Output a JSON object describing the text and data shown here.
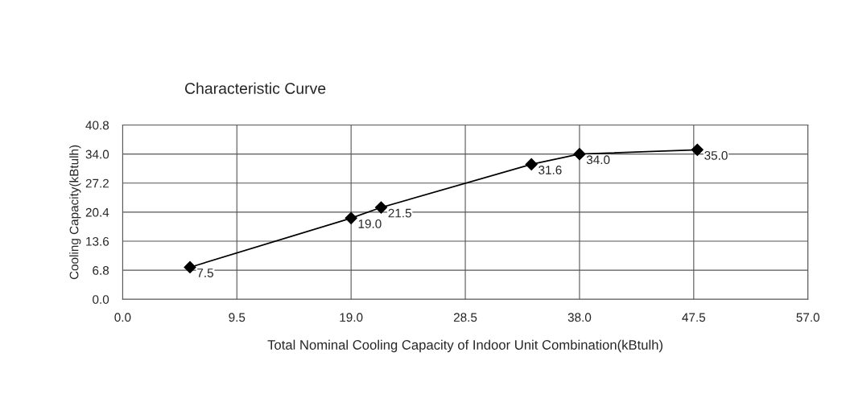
{
  "chart_data": {
    "type": "line",
    "title": "Characteristic Curve",
    "xlabel": "Total Nominal Cooling Capacity of Indoor Unit Combination(kBtulh)",
    "ylabel": "Cooling Capacity(kBtulh)",
    "x": [
      5.6,
      19.0,
      21.5,
      34.0,
      38.0,
      47.8
    ],
    "series": [
      {
        "color": "#000000",
        "values": [
          7.5,
          19.0,
          21.5,
          31.6,
          34.0,
          35.0
        ],
        "value_labels": [
          "7.5",
          "19.0",
          "21.5",
          "31.6",
          "34.0",
          "35.0"
        ]
      }
    ],
    "xlim": [
      0,
      57
    ],
    "ylim": [
      0,
      40.8
    ],
    "xticks": [
      {
        "value": 0,
        "label": "0.0"
      },
      9.5,
      {
        "value": 19,
        "label": "19.0"
      },
      28.5,
      {
        "value": 38,
        "label": "38.0"
      },
      47.5,
      {
        "value": 57,
        "label": "57.0"
      }
    ],
    "yticks": [
      {
        "value": 0,
        "label": "0.0"
      },
      6.8,
      13.6,
      20.4,
      27.2,
      {
        "value": 34,
        "label": "34.0"
      },
      40.8
    ],
    "grid": true,
    "marker": "diamond",
    "line_style": "solid",
    "legend": false
  }
}
